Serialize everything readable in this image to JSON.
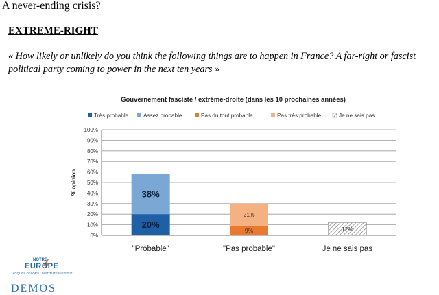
{
  "page_title": "A never-ending crisis?",
  "section_heading": "EXTREME-RIGHT",
  "question": "« How likely or unlikely do you think the following things are to happen in France? A far-right or fascist political party coming to power in the next ten years »",
  "logos": {
    "notre": "NOTRE",
    "europe": "EUROPE",
    "subtitle": "JACQUES DELORS | INSTITUTE INSTITUT",
    "demos": "DEMOS"
  },
  "chart_data": {
    "type": "bar",
    "stacked": true,
    "title": "Gouvernement fasciste / extrême-droite (dans les 10 prochaines années)",
    "ylabel": "% opinion",
    "xlabel": "",
    "ylim": [
      0,
      100
    ],
    "yticks": [
      "0%",
      "10%",
      "20%",
      "30%",
      "40%",
      "50%",
      "60%",
      "70%",
      "80%",
      "90%",
      "100%"
    ],
    "grid": true,
    "legend_position": "top",
    "categories": [
      "\"Probable\"",
      "\"Pas probable\"",
      "Je ne sais pas"
    ],
    "series": [
      {
        "name": "Très probable",
        "color": "#1f5fa6",
        "values": [
          20,
          0,
          0
        ],
        "labels": [
          "20%",
          "",
          ""
        ]
      },
      {
        "name": "Assez probable",
        "color": "#7aa7d4",
        "values": [
          38,
          0,
          0
        ],
        "labels": [
          "38%",
          "",
          ""
        ]
      },
      {
        "name": "Pas du tout probable",
        "color": "#e8792e",
        "values": [
          0,
          9,
          0
        ],
        "labels": [
          "",
          "9%",
          ""
        ]
      },
      {
        "name": "Pas très probable",
        "color": "#f6b183",
        "values": [
          0,
          21,
          0
        ],
        "labels": [
          "",
          "21%",
          ""
        ]
      },
      {
        "name": "Je ne sais pas",
        "color": "#c8c8c8",
        "pattern": "hatched",
        "values": [
          0,
          0,
          12
        ],
        "labels": [
          "",
          "",
          "12%"
        ]
      }
    ]
  }
}
